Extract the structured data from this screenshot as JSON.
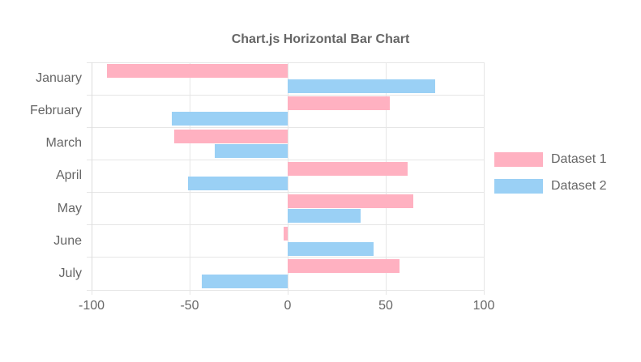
{
  "chart_data": {
    "type": "bar",
    "orientation": "horizontal",
    "title": "Chart.js Horizontal Bar Chart",
    "categories": [
      "January",
      "February",
      "March",
      "April",
      "May",
      "June",
      "July"
    ],
    "series": [
      {
        "name": "Dataset 1",
        "color": "#ffb1c1",
        "values": [
          -92,
          52,
          -58,
          61,
          64,
          -2,
          57
        ]
      },
      {
        "name": "Dataset 2",
        "color": "#9ad0f5",
        "values": [
          75,
          -59,
          -37,
          -51,
          37,
          44,
          -44
        ]
      }
    ],
    "xlim": [
      -100,
      100
    ],
    "x_ticks": [
      -100,
      -50,
      0,
      50,
      100
    ],
    "xlabel": "",
    "ylabel": "",
    "grid": true,
    "legend_position": "right",
    "colors": {
      "grid": "#e6e6e6",
      "text": "#666666",
      "background": "#ffffff"
    }
  }
}
